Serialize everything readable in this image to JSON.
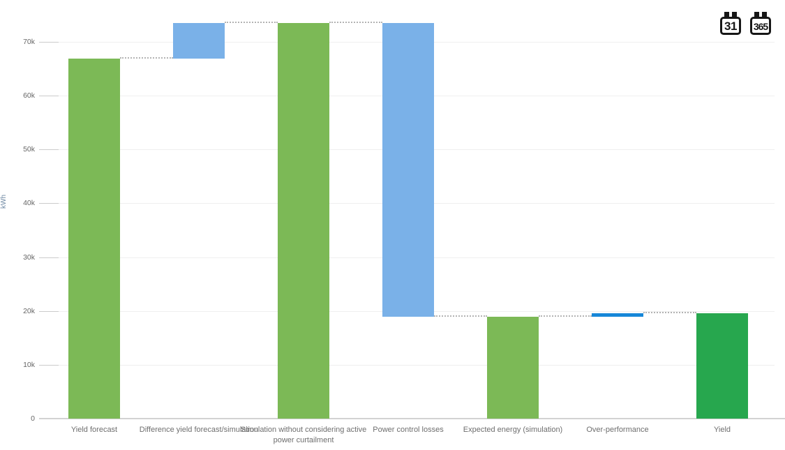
{
  "header": {
    "view_buttons": [
      {
        "label": "31",
        "name": "monthly-view"
      },
      {
        "label": "365",
        "name": "yearly-view"
      }
    ]
  },
  "chart_data": {
    "type": "waterfall",
    "title": "",
    "xlabel": "",
    "ylabel": "kWh",
    "ylim": [
      0,
      77800
    ],
    "grid": true,
    "legend": false,
    "yticks": [
      {
        "value": 0,
        "label": "0"
      },
      {
        "value": 10000,
        "label": "10k"
      },
      {
        "value": 20000,
        "label": "20k"
      },
      {
        "value": 30000,
        "label": "30k"
      },
      {
        "value": 40000,
        "label": "40k"
      },
      {
        "value": 50000,
        "label": "50k"
      },
      {
        "value": 60000,
        "label": "60k"
      },
      {
        "value": 70000,
        "label": "70k"
      }
    ],
    "categories": [
      "Yield forecast",
      "Difference yield forecast/simulation",
      "Simulation without considering active power curtailment",
      "Power control losses",
      "Expected energy (simulation)",
      "Over-performance",
      "Yield"
    ],
    "bars": [
      {
        "category": "Yield forecast",
        "from": 0,
        "to": 66900,
        "value": 66900,
        "role": "total",
        "color": "#7cb956"
      },
      {
        "category": "Difference yield forecast/simulation",
        "from": 66900,
        "to": 73500,
        "value": 6600,
        "role": "increase",
        "color": "#7ab1e8"
      },
      {
        "category": "Simulation without considering active power curtailment",
        "from": 0,
        "to": 73500,
        "value": 73500,
        "role": "total",
        "color": "#7cb956"
      },
      {
        "category": "Power control losses",
        "from": 73500,
        "to": 18900,
        "value": -54600,
        "role": "decrease",
        "color": "#7ab1e8"
      },
      {
        "category": "Expected energy (simulation)",
        "from": 0,
        "to": 18900,
        "value": 18900,
        "role": "total",
        "color": "#7cb956"
      },
      {
        "category": "Over-performance",
        "from": 18900,
        "to": 19550,
        "value": 650,
        "role": "increase",
        "color": "#1787d8"
      },
      {
        "category": "Yield",
        "from": 0,
        "to": 19550,
        "value": 19550,
        "role": "total",
        "color": "#27a74e"
      }
    ],
    "connector_style": {
      "line": "dotted",
      "color": "#b3b3b3"
    },
    "colors": {
      "total_green": "#7cb956",
      "delta_blue": "#7ab1e8",
      "overperformance_blue": "#1787d8",
      "yield_green": "#27a74e",
      "gridline": "#efefef",
      "axis_line": "#d2d2d2",
      "tick_label": "#666666",
      "category_label": "#6e6e6e",
      "ylabel_color": "#6e88a3"
    }
  }
}
